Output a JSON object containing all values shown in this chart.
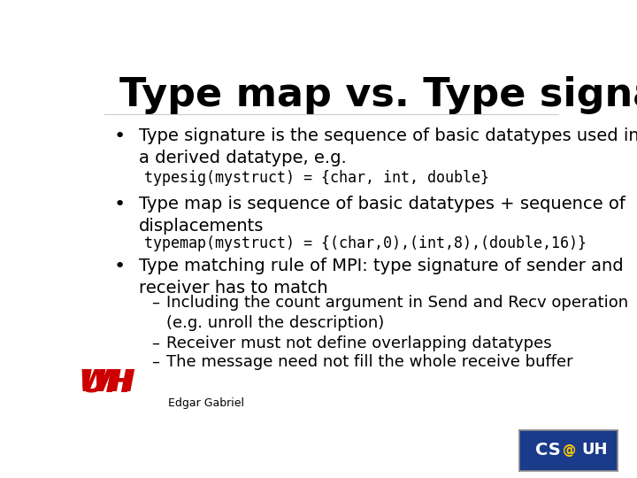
{
  "title": "Type map vs. Type signature",
  "background_color": "#ffffff",
  "title_fontsize": 32,
  "bullet1": "Type signature is the sequence of basic datatypes used in\na derived datatype, e.g.",
  "code1": "typesig(mystruct) = {char, int, double}",
  "bullet2": "Type map is sequence of basic datatypes + sequence of\ndisplacements",
  "code2": "typemap(mystruct) = {(char,0),(int,8),(double,16)}",
  "bullet3": "Type matching rule of MPI: type signature of sender and\nreceiver has to match",
  "sub1": "Including the count argument in Send and Recv operation\n(e.g. unroll the description)",
  "sub2": "Receiver must not define overlapping datatypes",
  "sub3": "The message need not fill the whole receive buffer",
  "footer": "Edgar Gabriel",
  "text_color": "#000000",
  "code_color": "#000000",
  "bullet_fontsize": 14,
  "code_fontsize": 12,
  "sub_fontsize": 13,
  "footer_fontsize": 9
}
